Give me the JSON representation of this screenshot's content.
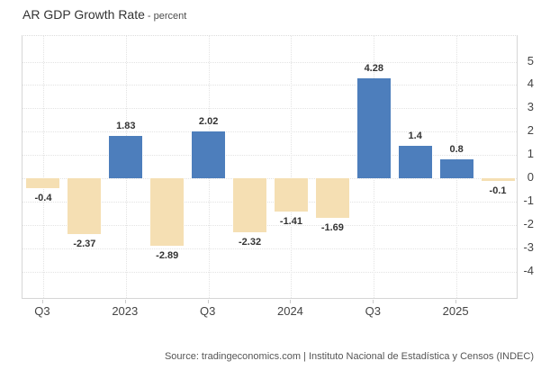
{
  "header": {
    "title": "AR GDP Growth Rate",
    "subtitle": "- percent"
  },
  "source": "Source: tradingeconomics.com | Instituto Nacional de Estadística y Censos (INDEC)",
  "chart_data": {
    "type": "bar",
    "title": "AR GDP Growth Rate - percent",
    "series": [
      {
        "name": "AR GDP Growth Rate",
        "values": [
          -0.4,
          -2.37,
          1.83,
          -2.89,
          2.02,
          -2.32,
          -1.41,
          -1.69,
          4.28,
          1.4,
          0.8,
          -0.1
        ]
      }
    ],
    "value_labels": [
      "-0.4",
      "-2.37",
      "1.83",
      "-2.89",
      "2.02",
      "-2.32",
      "-1.41",
      "-1.69",
      "4.28",
      "1.4",
      "0.8",
      "-0.1"
    ],
    "x_tick_labels": [
      "Q3",
      "",
      "2023",
      "",
      "Q3",
      "",
      "2024",
      "",
      "Q3",
      "",
      "2025",
      ""
    ],
    "y_ticks": [
      5,
      4,
      3,
      2,
      1,
      0,
      -1,
      -2,
      -3,
      -4
    ],
    "ylim": [
      -5.2,
      6.1
    ],
    "yaxis_side": "right",
    "grid": "dotted",
    "legend": "none",
    "colors": {
      "positive_bar": "#4d7ebc",
      "negative_bar": "#f5dfb3",
      "label_text": "#333333"
    }
  }
}
